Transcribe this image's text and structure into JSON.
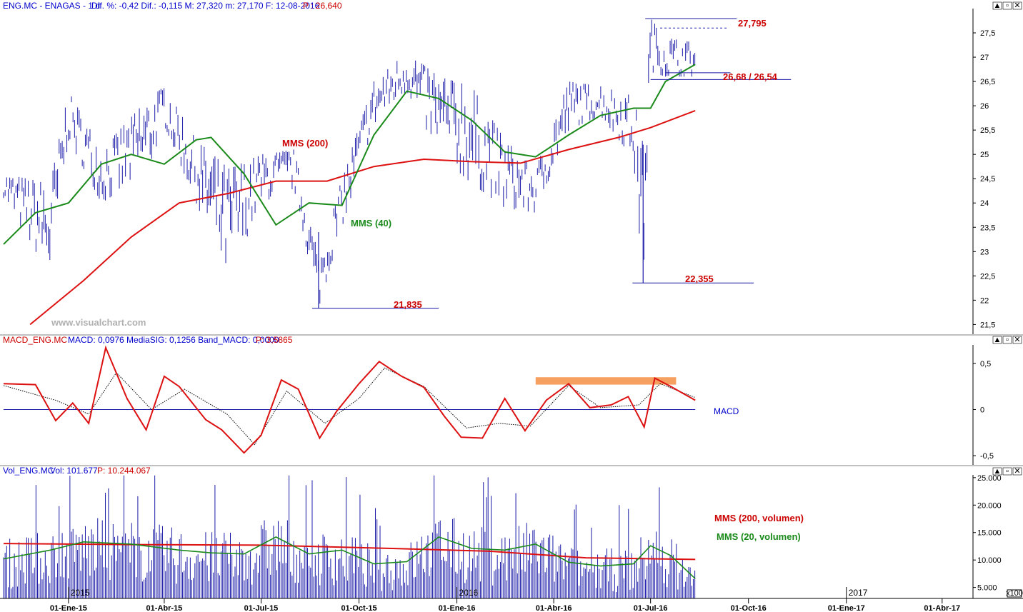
{
  "colors": {
    "price": "#1a1aa8",
    "mms40": "#1a8a1a",
    "mms200": "#dd1111",
    "annot_red": "#cc0000",
    "macd": "#dd1111",
    "signal": "#000000",
    "highlight": "#f5a060",
    "volume": "#1a1aa8",
    "axis": "#000000"
  },
  "panels": {
    "price": {
      "header": {
        "symbol": "ENG.MC - ENAGAS - 1 d",
        "stats": "Dif. %: -0,42  Dif.: -0,115  M: 27,320  m: 27,170  F: 12-08-2016",
        "last": "P : 26,640"
      },
      "watermark": "www.visualchart.com",
      "y_ticks": [
        "27,5",
        "27",
        "26,5",
        "26",
        "25,5",
        "25",
        "24,5",
        "24",
        "23,5",
        "23",
        "22,5",
        "22",
        "21,5"
      ],
      "annotations": {
        "high": "27,795",
        "support": "26,68 / 26,54",
        "low_jun": "22,355",
        "low_aug": "21,835",
        "mms200": "MMS (200)",
        "mms40": "MMS (40)"
      }
    },
    "macd": {
      "header": {
        "name": "MACD_ENG.MC",
        "stats": "MACD: 0,0976  MediaSIG: 0,1256  Band_MACD: 0,0000",
        "last": "P: 3,5865"
      },
      "y_ticks": [
        "0,5",
        "0",
        "-0,5"
      ],
      "label": "MACD"
    },
    "volume": {
      "header": {
        "name": "Vol_ENG.MC",
        "stats": "Vol: 101.677",
        "last": "P: 10.244.067"
      },
      "y_ticks": [
        "25.000",
        "20.000",
        "15.000",
        "10.000",
        "5.000"
      ],
      "mms200_label": "MMS (200, volumen)",
      "mms20_label": "MMS (20, volumen)",
      "year_labels": [
        "2015",
        "2016",
        "2017"
      ],
      "scale_badge": "x100"
    }
  },
  "x_axis": {
    "labels": [
      "01-Ene-15",
      "01-Abr-15",
      "01-Jul-15",
      "01-Oct-15",
      "01-Ene-16",
      "01-Abr-16",
      "01-Jul-16",
      "01-Oct-16",
      "01-Ene-17",
      "01-Abr-17"
    ]
  },
  "window_buttons": {
    "up": "▲",
    "restore": "▫",
    "close": "✕"
  },
  "chart_data": [
    {
      "type": "line",
      "panel": "price",
      "x_range": [
        "2014-11-01",
        "2017-04-30"
      ],
      "ylim": [
        21.3,
        28.0
      ],
      "series": [
        {
          "name": "MMS (200)",
          "x": [
            "2014-11-26",
            "2015-01-15",
            "2015-03-01",
            "2015-04-15",
            "2015-06-01",
            "2015-07-15",
            "2015-09-01",
            "2015-10-15",
            "2015-12-01",
            "2016-01-15",
            "2016-03-01",
            "2016-04-15",
            "2016-06-01",
            "2016-07-01",
            "2016-08-12"
          ],
          "values": [
            21.5,
            22.4,
            23.3,
            24.0,
            24.2,
            24.45,
            24.45,
            24.75,
            24.9,
            24.85,
            24.82,
            25.1,
            25.35,
            25.55,
            25.9
          ]
        },
        {
          "name": "MMS (40)",
          "x": [
            "2014-11-01",
            "2014-12-01",
            "2015-01-01",
            "2015-02-01",
            "2015-03-01",
            "2015-04-01",
            "2015-05-01",
            "2015-05-15",
            "2015-06-15",
            "2015-07-15",
            "2015-08-15",
            "2015-09-15",
            "2015-10-15",
            "2015-11-15",
            "2015-12-15",
            "2016-01-15",
            "2016-02-15",
            "2016-03-15",
            "2016-04-15",
            "2016-05-15",
            "2016-06-15",
            "2016-07-01",
            "2016-07-15",
            "2016-08-12"
          ],
          "values": [
            23.15,
            23.8,
            24.0,
            24.8,
            25.0,
            24.8,
            25.3,
            25.35,
            24.6,
            23.55,
            24.0,
            23.95,
            25.4,
            26.3,
            26.15,
            25.7,
            25.05,
            24.95,
            25.4,
            25.8,
            25.95,
            25.95,
            26.5,
            26.85
          ]
        },
        {
          "name": "price_high",
          "x": [
            "2014-11-01",
            "2014-12-15",
            "2015-01-01",
            "2015-02-01",
            "2015-03-15",
            "2015-04-01",
            "2015-05-01",
            "2015-06-01",
            "2015-07-01",
            "2015-08-01",
            "2015-08-24",
            "2015-09-15",
            "2015-10-15",
            "2015-11-15",
            "2015-12-15",
            "2016-01-15",
            "2016-02-15",
            "2016-03-15",
            "2016-04-15",
            "2016-05-15",
            "2016-06-15",
            "2016-06-24",
            "2016-07-01",
            "2016-07-15",
            "2016-08-12"
          ],
          "values": [
            24.6,
            24.4,
            26.3,
            25.1,
            26.1,
            26.4,
            25.3,
            24.7,
            25.0,
            25.1,
            22.9,
            24.5,
            26.5,
            27.1,
            26.6,
            26.4,
            25.3,
            24.7,
            26.5,
            26.4,
            26.2,
            25.2,
            27.8,
            27.4,
            27.3
          ]
        },
        {
          "name": "price_low",
          "x": [
            "2014-11-01",
            "2014-12-15",
            "2015-01-01",
            "2015-02-01",
            "2015-03-15",
            "2015-04-01",
            "2015-05-01",
            "2015-06-01",
            "2015-07-01",
            "2015-08-01",
            "2015-08-24",
            "2015-09-15",
            "2015-10-15",
            "2015-11-15",
            "2015-12-15",
            "2016-01-15",
            "2016-02-15",
            "2016-03-15",
            "2016-04-15",
            "2016-05-15",
            "2016-06-15",
            "2016-06-24",
            "2016-07-01",
            "2016-07-15",
            "2016-08-12"
          ],
          "values": [
            24.1,
            22.5,
            25.3,
            24.0,
            24.6,
            25.6,
            24.0,
            22.4,
            24.0,
            24.3,
            21.835,
            23.5,
            25.6,
            26.3,
            25.0,
            24.4,
            23.9,
            23.8,
            25.5,
            25.8,
            24.9,
            22.355,
            26.7,
            26.6,
            26.6
          ]
        }
      ],
      "levels": [
        {
          "label": "27,795",
          "value": 27.795
        },
        {
          "label": "26,68 / 26,54",
          "value": [
            26.68,
            26.54
          ]
        },
        {
          "label": "22,355",
          "value": 22.355
        },
        {
          "label": "21,835",
          "value": 21.835
        }
      ]
    },
    {
      "type": "line",
      "panel": "macd",
      "x_range": [
        "2014-11-01",
        "2017-04-30"
      ],
      "ylim": [
        -0.6,
        0.7
      ],
      "series": [
        {
          "name": "MACD",
          "x": [
            "2014-11-01",
            "2014-12-01",
            "2014-12-20",
            "2015-01-05",
            "2015-01-20",
            "2015-02-05",
            "2015-02-25",
            "2015-03-15",
            "2015-04-01",
            "2015-04-15",
            "2015-05-10",
            "2015-05-25",
            "2015-06-15",
            "2015-07-01",
            "2015-07-20",
            "2015-08-05",
            "2015-08-25",
            "2015-09-10",
            "2015-10-01",
            "2015-10-20",
            "2015-11-10",
            "2015-12-01",
            "2015-12-20",
            "2016-01-05",
            "2016-01-25",
            "2016-02-15",
            "2016-03-05",
            "2016-03-25",
            "2016-04-15",
            "2016-05-05",
            "2016-05-25",
            "2016-06-10",
            "2016-06-25",
            "2016-07-05",
            "2016-07-20",
            "2016-08-12"
          ],
          "values": [
            0.28,
            0.27,
            -0.12,
            0.07,
            -0.15,
            0.67,
            0.12,
            -0.22,
            0.36,
            0.25,
            -0.11,
            -0.22,
            -0.47,
            -0.28,
            0.32,
            0.22,
            -0.31,
            -0.02,
            0.28,
            0.52,
            0.36,
            0.24,
            -0.07,
            -0.3,
            -0.31,
            0.12,
            -0.23,
            0.1,
            0.28,
            0.02,
            0.05,
            0.14,
            -0.19,
            0.34,
            0.25,
            0.1
          ]
        },
        {
          "name": "MediaSIG",
          "x": [
            "2014-11-01",
            "2014-12-20",
            "2015-01-20",
            "2015-02-15",
            "2015-03-20",
            "2015-04-20",
            "2015-05-30",
            "2015-06-25",
            "2015-07-25",
            "2015-08-30",
            "2015-10-01",
            "2015-10-25",
            "2015-12-01",
            "2016-01-10",
            "2016-02-10",
            "2016-03-10",
            "2016-04-15",
            "2016-05-15",
            "2016-06-20",
            "2016-07-10",
            "2016-08-12"
          ],
          "values": [
            0.26,
            0.1,
            -0.05,
            0.4,
            0.0,
            0.22,
            -0.05,
            -0.38,
            0.2,
            -0.15,
            0.12,
            0.45,
            0.25,
            -0.2,
            -0.15,
            -0.18,
            0.26,
            0.02,
            0.05,
            0.28,
            0.13
          ]
        }
      ],
      "highlight_band": {
        "x": [
          "2016-03-15",
          "2016-07-25"
        ],
        "y": [
          0.27,
          0.35
        ]
      }
    },
    {
      "type": "bar",
      "panel": "volume",
      "unit": "x100",
      "x_range": [
        "2014-11-01",
        "2017-04-30"
      ],
      "ylim": [
        3000,
        25500
      ],
      "series": [
        {
          "name": "MMS (200, volumen)",
          "x": [
            "2014-11-01",
            "2015-03-01",
            "2015-07-01",
            "2015-11-01",
            "2016-02-01",
            "2016-05-01",
            "2016-08-12"
          ],
          "values": [
            13000,
            12800,
            12700,
            12100,
            11600,
            10400,
            10100
          ]
        },
        {
          "name": "MMS (20, volumen)",
          "x": [
            "2014-11-01",
            "2014-12-15",
            "2015-01-15",
            "2015-03-01",
            "2015-04-15",
            "2015-05-15",
            "2015-06-15",
            "2015-07-15",
            "2015-08-15",
            "2015-09-15",
            "2015-10-15",
            "2015-11-15",
            "2015-12-15",
            "2016-01-15",
            "2016-02-15",
            "2016-03-15",
            "2016-04-15",
            "2016-05-15",
            "2016-06-15",
            "2016-07-01",
            "2016-07-20",
            "2016-08-12"
          ],
          "values": [
            10200,
            11800,
            13300,
            12900,
            11800,
            11300,
            11100,
            14200,
            11100,
            11800,
            9300,
            9700,
            14200,
            12100,
            11800,
            12900,
            9600,
            8900,
            9300,
            12600,
            10800,
            6600
          ]
        }
      ]
    }
  ]
}
